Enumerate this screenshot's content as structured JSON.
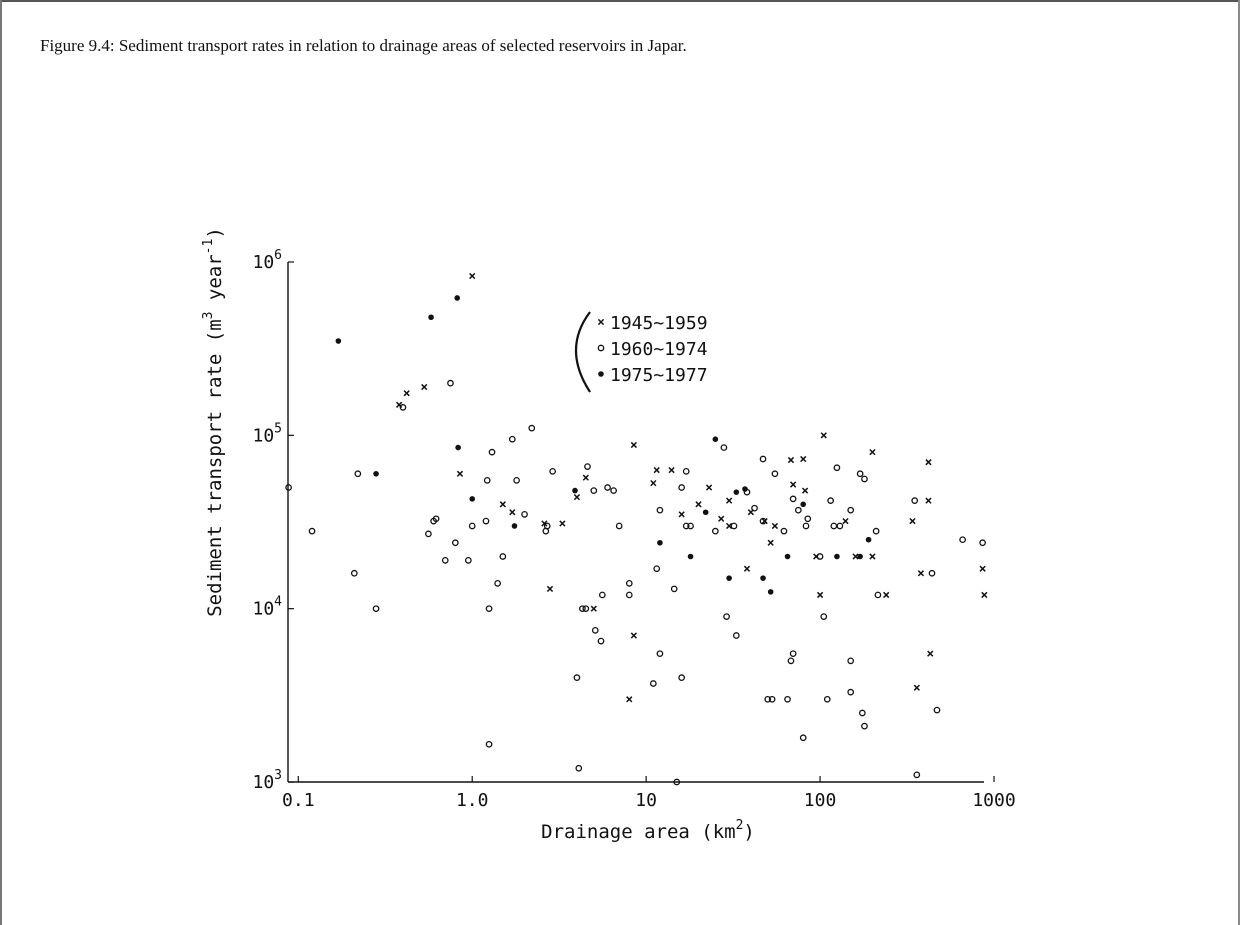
{
  "caption": "Figure 9.4:  Sediment transport rates in relation to drainage areas of selected reservoirs in Japar.",
  "chart_data": {
    "type": "scatter",
    "title": "",
    "xlabel": "Drainage area (km",
    "xlabel_sup": "2",
    "xlabel_end": ")",
    "ylabel": "Sediment transport rate  (m",
    "ylabel_sup1": "3",
    "ylabel_mid": " year",
    "ylabel_sup2": "-1",
    "ylabel_end": ")",
    "x_scale": "log",
    "y_scale": "log",
    "xlim": [
      0.085,
      1000
    ],
    "ylim": [
      1000,
      1000000
    ],
    "x_ticks": [
      {
        "value": 0.1,
        "label": "0.1"
      },
      {
        "value": 1,
        "label": "1.0"
      },
      {
        "value": 10,
        "label": "10"
      },
      {
        "value": 100,
        "label": "100"
      },
      {
        "value": 1000,
        "label": "1000"
      }
    ],
    "y_ticks": [
      {
        "value": 1000,
        "base": "10",
        "exp": "3"
      },
      {
        "value": 10000,
        "base": "10",
        "exp": "4"
      },
      {
        "value": 100000,
        "base": "10",
        "exp": "5"
      },
      {
        "value": 1000000,
        "base": "10",
        "exp": "6"
      }
    ],
    "grid": false,
    "legend_position": "upper-center",
    "series": [
      {
        "name": "1945~1959",
        "marker": "x",
        "points": [
          [
            1.0,
            830000
          ],
          [
            0.53,
            190000
          ],
          [
            0.42,
            175000
          ],
          [
            0.38,
            150000
          ],
          [
            0.85,
            60000
          ],
          [
            1.5,
            40000
          ],
          [
            1.7,
            36000
          ],
          [
            2.6,
            31000
          ],
          [
            3.3,
            31000
          ],
          [
            2.8,
            13000
          ],
          [
            4.0,
            44000
          ],
          [
            4.5,
            57000
          ],
          [
            5.0,
            10000
          ],
          [
            8.5,
            88000
          ],
          [
            8.5,
            7000
          ],
          [
            8.0,
            3000
          ],
          [
            11.0,
            53000
          ],
          [
            11.5,
            63000
          ],
          [
            14.0,
            63000
          ],
          [
            16.0,
            35000
          ],
          [
            20.0,
            40000
          ],
          [
            23.0,
            50000
          ],
          [
            27.0,
            33000
          ],
          [
            30.0,
            42000
          ],
          [
            40.0,
            36000
          ],
          [
            38.0,
            17000
          ],
          [
            48.0,
            32000
          ],
          [
            52.0,
            24000
          ],
          [
            68.0,
            72000
          ],
          [
            70.0,
            52000
          ],
          [
            80.0,
            73000
          ],
          [
            82.0,
            48000
          ],
          [
            95.0,
            20000
          ],
          [
            100.0,
            12000
          ],
          [
            105.0,
            100000
          ],
          [
            140.0,
            32000
          ],
          [
            160.0,
            20000
          ],
          [
            200.0,
            80000
          ],
          [
            200.0,
            20000
          ],
          [
            240.0,
            12000
          ],
          [
            340.0,
            32000
          ],
          [
            360.0,
            3500
          ],
          [
            380.0,
            16000
          ],
          [
            420.0,
            70000
          ],
          [
            420.0,
            42000
          ],
          [
            430.0,
            5500
          ],
          [
            860.0,
            17000
          ],
          [
            880.0,
            12000
          ],
          [
            30.0,
            30000
          ],
          [
            55.0,
            30000
          ]
        ]
      },
      {
        "name": "1960~1974",
        "marker": "o",
        "points": [
          [
            0.088,
            50000
          ],
          [
            0.12,
            28000
          ],
          [
            0.21,
            16000
          ],
          [
            0.22,
            60000
          ],
          [
            0.28,
            10000
          ],
          [
            0.4,
            145000
          ],
          [
            0.56,
            27000
          ],
          [
            0.6,
            32000
          ],
          [
            0.62,
            33000
          ],
          [
            0.7,
            19000
          ],
          [
            0.75,
            200000
          ],
          [
            0.8,
            24000
          ],
          [
            0.95,
            19000
          ],
          [
            1.0,
            30000
          ],
          [
            1.2,
            32000
          ],
          [
            1.22,
            55000
          ],
          [
            1.25,
            10000
          ],
          [
            1.25,
            1650
          ],
          [
            1.3,
            80000
          ],
          [
            1.4,
            14000
          ],
          [
            1.5,
            20000
          ],
          [
            1.7,
            95000
          ],
          [
            1.8,
            55000
          ],
          [
            2.0,
            35000
          ],
          [
            2.2,
            110000
          ],
          [
            2.7,
            30000
          ],
          [
            2.9,
            62000
          ],
          [
            2.65,
            28000
          ],
          [
            4.0,
            4000
          ],
          [
            4.1,
            1200
          ],
          [
            4.3,
            10000
          ],
          [
            4.5,
            10000
          ],
          [
            4.6,
            66000
          ],
          [
            5.0,
            48000
          ],
          [
            5.1,
            7500
          ],
          [
            5.5,
            6500
          ],
          [
            5.6,
            12000
          ],
          [
            6.0,
            50000
          ],
          [
            6.5,
            48000
          ],
          [
            7.0,
            30000
          ],
          [
            8.0,
            14000
          ],
          [
            8.0,
            12000
          ],
          [
            11.0,
            3700
          ],
          [
            11.5,
            17000
          ],
          [
            12.0,
            5500
          ],
          [
            12.0,
            37000
          ],
          [
            14.5,
            13000
          ],
          [
            15.0,
            1000
          ],
          [
            16.0,
            4000
          ],
          [
            16.0,
            50000
          ],
          [
            17.0,
            30000
          ],
          [
            17.0,
            62000
          ],
          [
            18.0,
            30000
          ],
          [
            25.0,
            28000
          ],
          [
            28.0,
            85000
          ],
          [
            29.0,
            9000
          ],
          [
            33.0,
            7000
          ],
          [
            38.0,
            47000
          ],
          [
            42.0,
            38000
          ],
          [
            47.0,
            73000
          ],
          [
            50.0,
            3000
          ],
          [
            53.0,
            3000
          ],
          [
            55.0,
            60000
          ],
          [
            62.0,
            28000
          ],
          [
            65.0,
            3000
          ],
          [
            68.0,
            5000
          ],
          [
            70.0,
            5500
          ],
          [
            75.0,
            37000
          ],
          [
            80.0,
            1800
          ],
          [
            85.0,
            33000
          ],
          [
            100.0,
            20000
          ],
          [
            105.0,
            9000
          ],
          [
            110.0,
            3000
          ],
          [
            115.0,
            42000
          ],
          [
            125.0,
            65000
          ],
          [
            130.0,
            30000
          ],
          [
            150.0,
            5000
          ],
          [
            150.0,
            3300
          ],
          [
            170.0,
            60000
          ],
          [
            175.0,
            2500
          ],
          [
            180.0,
            2100
          ],
          [
            180.0,
            56000
          ],
          [
            210.0,
            28000
          ],
          [
            215.0,
            12000
          ],
          [
            350.0,
            42000
          ],
          [
            360.0,
            1100
          ],
          [
            470.0,
            2600
          ],
          [
            440.0,
            16000
          ],
          [
            660.0,
            25000
          ],
          [
            860.0,
            24000
          ],
          [
            32.0,
            30000
          ],
          [
            70.0,
            43000
          ],
          [
            47.0,
            32000
          ],
          [
            120.0,
            30000
          ],
          [
            150.0,
            37000
          ],
          [
            83.0,
            30000
          ]
        ]
      },
      {
        "name": "1975~1977",
        "marker": "dot",
        "points": [
          [
            0.17,
            350000
          ],
          [
            0.28,
            60000
          ],
          [
            0.58,
            480000
          ],
          [
            0.82,
            620000
          ],
          [
            0.83,
            85000
          ],
          [
            1.0,
            43000
          ],
          [
            1.75,
            30000
          ],
          [
            3.9,
            48000
          ],
          [
            12.0,
            24000
          ],
          [
            18.0,
            20000
          ],
          [
            25.0,
            95000
          ],
          [
            30.0,
            15000
          ],
          [
            33.0,
            47000
          ],
          [
            37.0,
            49000
          ],
          [
            47.0,
            15000
          ],
          [
            52.0,
            12500
          ],
          [
            65.0,
            20000
          ],
          [
            80.0,
            40000
          ],
          [
            125.0,
            20000
          ],
          [
            170.0,
            20000
          ],
          [
            190.0,
            25000
          ],
          [
            22.0,
            36000
          ]
        ]
      }
    ]
  }
}
